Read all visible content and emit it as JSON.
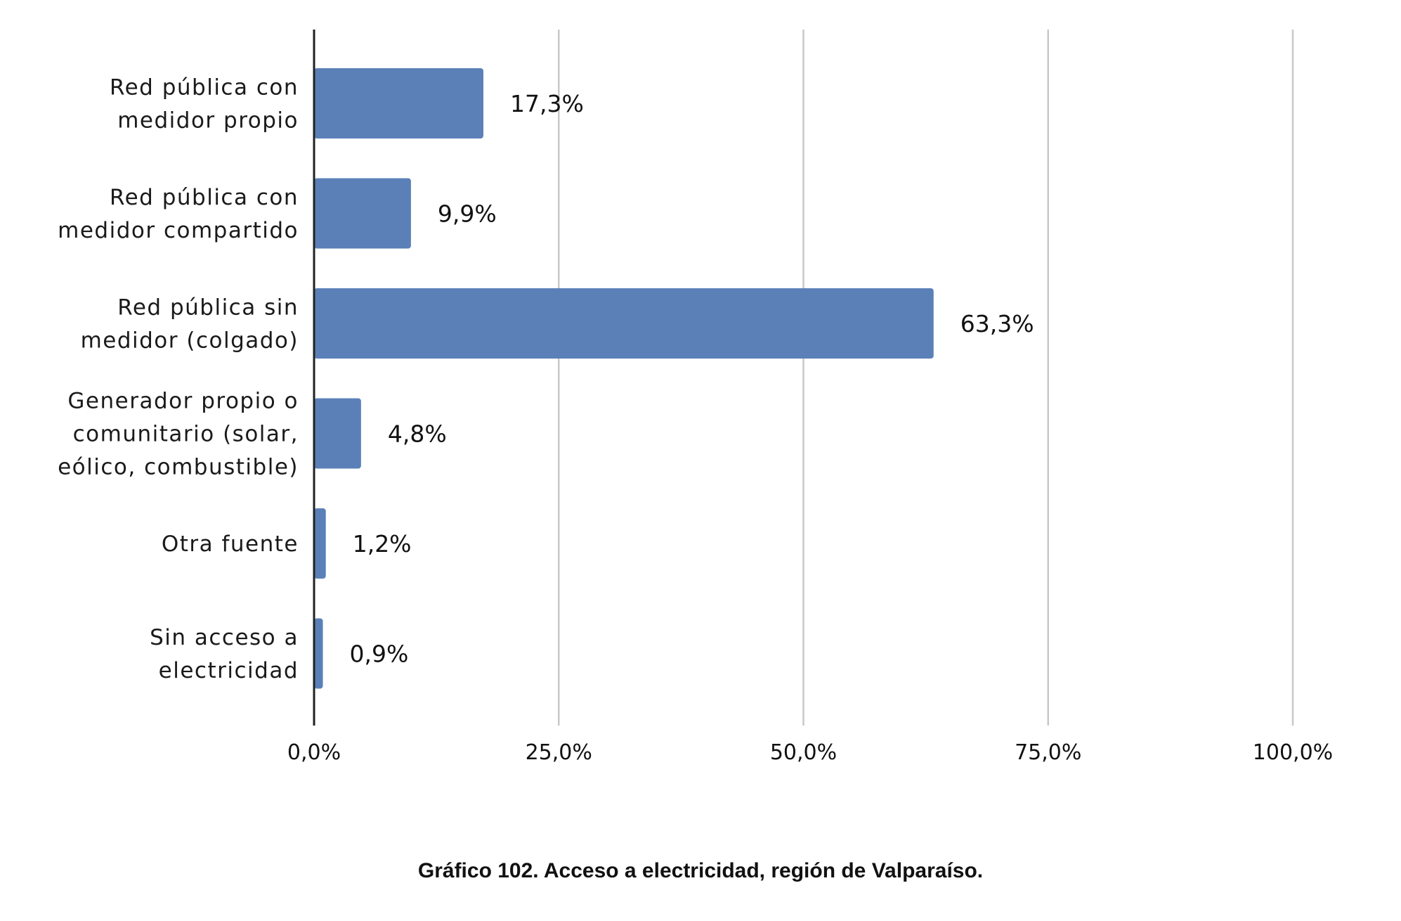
{
  "chart_data": {
    "type": "bar",
    "orientation": "horizontal",
    "categories": [
      [
        "Red pública con",
        "medidor propio"
      ],
      [
        "Red pública con",
        "medidor compartido"
      ],
      [
        "Red pública sin",
        "medidor (colgado)"
      ],
      [
        "Generador propio o",
        "comunitario (solar,",
        "eólico, combustible)"
      ],
      [
        "Otra fuente"
      ],
      [
        "Sin acceso a",
        "electricidad"
      ]
    ],
    "values": [
      17.3,
      9.9,
      63.3,
      4.8,
      1.2,
      0.9
    ],
    "value_labels": [
      "17,3%",
      "9,9%",
      "63,3%",
      "4,8%",
      "1,2%",
      "0,9%"
    ],
    "xlim": [
      0,
      100
    ],
    "xticks": [
      0,
      25,
      50,
      75,
      100
    ],
    "xtick_labels": [
      "0,0%",
      "25,0%",
      "50,0%",
      "75,0%",
      "100,0%"
    ],
    "grid": "vertical",
    "bar_color": "#5b80b8",
    "grid_color": "#c8c8c8",
    "axis_color": "#222222"
  },
  "caption": "Gráfico 102. Acceso a electricidad, región de Valparaíso."
}
